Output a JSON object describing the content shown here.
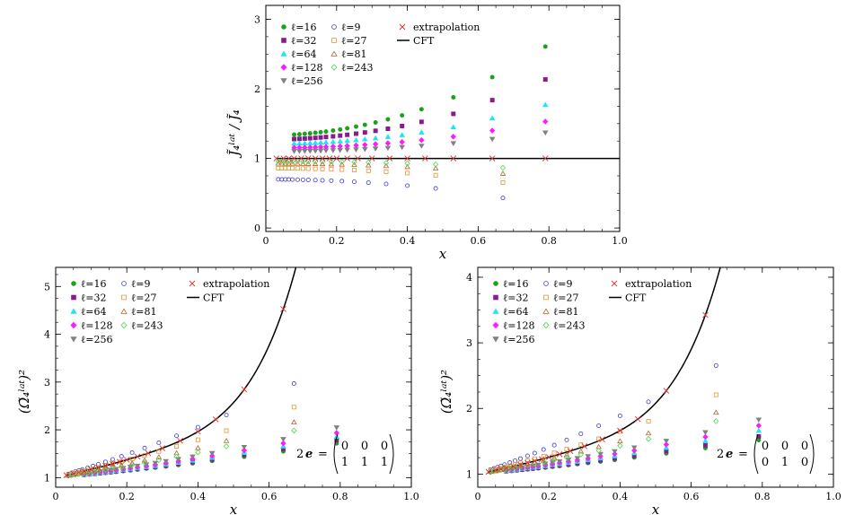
{
  "colors": {
    "l16": "#1aa31a",
    "l32": "#8b1a8b",
    "l64": "#1ee6f0",
    "l128": "#ff1aff",
    "l256": "#808080",
    "l9": "#3b3bd9",
    "l27": "#f0922e",
    "l81": "#b5652e",
    "l243": "#4fd64f",
    "extrapolation": "#e03030",
    "cft": "#000000"
  },
  "chart_data": [
    {
      "id": "top",
      "type": "scatter",
      "ylabel": "J̃₄ˡᵃᵗ / J̃₄",
      "xlabel": "x",
      "xlim": [
        0,
        1.0
      ],
      "ylim": [
        -0.05,
        3.2
      ],
      "xticks": [
        "0",
        "0.2",
        "0.4",
        "0.6",
        "0.8",
        "1.0"
      ],
      "xtick_values": [
        0,
        0.2,
        0.4,
        0.6,
        0.8,
        1.0
      ],
      "yticks": [
        "0",
        "1",
        "2",
        "3"
      ],
      "ytick_values": [
        0,
        1,
        2,
        3
      ],
      "legend": [
        "ℓ=16",
        "ℓ=32",
        "ℓ=64",
        "ℓ=128",
        "ℓ=256",
        "ℓ=9",
        "ℓ=27",
        "ℓ=81",
        "ℓ=243",
        "extrapolation",
        "CFT"
      ],
      "cft": "flat",
      "fits": {
        "l16": {
          "a": 1.33,
          "b": 1.95
        },
        "l32": {
          "a": 1.27,
          "b": 1.32
        },
        "l64": {
          "a": 1.21,
          "b": 0.86
        },
        "l128": {
          "a": 1.15,
          "b": 0.58
        },
        "l256": {
          "a": 1.1,
          "b": 0.41
        },
        "l9": {
          "a": 0.7,
          "b": -0.57
        },
        "l27": {
          "a": 0.86,
          "b": -0.44
        },
        "l81": {
          "a": 0.93,
          "b": -0.31
        },
        "l243": {
          "a": 0.96,
          "b": -0.2
        }
      },
      "matrix": null
    },
    {
      "id": "bottom-left",
      "type": "scatter",
      "ylabel": "(Ω̃₄ˡᵃᵗ)²",
      "xlabel": "x",
      "xlim": [
        0,
        1.0
      ],
      "ylim": [
        0.8,
        5.4
      ],
      "xticks": [
        "0",
        "0.2",
        "0.4",
        "0.6",
        "0.8",
        "1.0"
      ],
      "xtick_values": [
        0,
        0.2,
        0.4,
        0.6,
        0.8,
        1.0
      ],
      "yticks": [
        "1",
        "2",
        "3",
        "4",
        "5"
      ],
      "ytick_values": [
        1,
        2,
        3,
        4,
        5
      ],
      "legend": [
        "ℓ=16",
        "ℓ=32",
        "ℓ=64",
        "ℓ=128",
        "ℓ=256",
        "ℓ=9",
        "ℓ=27",
        "ℓ=81",
        "ℓ=243",
        "extrapolation",
        "CFT"
      ],
      "cft": "growing",
      "cft_k": 1.6,
      "fits": {
        "l16": {
          "k": 0.65
        },
        "l32": {
          "k": 0.71
        },
        "l64": {
          "k": 0.78
        },
        "l128": {
          "k": 0.85
        },
        "l256": {
          "k": 0.95
        },
        "l9": {
          "k": 2.2
        },
        "l27": {
          "k": 1.65
        },
        "l81": {
          "k": 1.3
        },
        "l243": {
          "k": 1.1
        }
      },
      "matrix": {
        "prefix": "2",
        "symbol": "e",
        "rows": [
          [
            "0",
            "0",
            "0"
          ],
          [
            "1",
            "1",
            "1"
          ]
        ]
      }
    },
    {
      "id": "bottom-right",
      "type": "scatter",
      "ylabel": "(Ω̃₄ˡᵃᵗ)²",
      "xlabel": "x",
      "xlim": [
        0,
        1.0
      ],
      "ylim": [
        0.8,
        4.15
      ],
      "xticks": [
        "0",
        "0.2",
        "0.4",
        "0.6",
        "0.8",
        "1.0"
      ],
      "xtick_values": [
        0,
        0.2,
        0.4,
        0.6,
        0.8,
        1.0
      ],
      "yticks": [
        "1",
        "2",
        "3",
        "4"
      ],
      "ytick_values": [
        1,
        2,
        3,
        4
      ],
      "legend": [
        "ℓ=16",
        "ℓ=32",
        "ℓ=64",
        "ℓ=128",
        "ℓ=256",
        "ℓ=9",
        "ℓ=27",
        "ℓ=81",
        "ℓ=243",
        "extrapolation",
        "CFT"
      ],
      "cft": "growing",
      "cft_k": 1.1,
      "fits": {
        "l16": {
          "k": 0.47
        },
        "l32": {
          "k": 0.52
        },
        "l64": {
          "k": 0.6
        },
        "l128": {
          "k": 0.67
        },
        "l256": {
          "k": 0.75
        },
        "l9": {
          "k": 1.85
        },
        "l27": {
          "k": 1.35
        },
        "l81": {
          "k": 1.05
        },
        "l243": {
          "k": 0.9
        }
      },
      "matrix": {
        "prefix": "2",
        "symbol": "e",
        "rows": [
          [
            "0",
            "0",
            "0"
          ],
          [
            "0",
            "1",
            "0"
          ]
        ]
      }
    }
  ],
  "series_order": [
    "l16",
    "l32",
    "l64",
    "l128",
    "l256",
    "l9",
    "l27",
    "l81",
    "l243"
  ],
  "extrapolation_x": [
    0.03,
    0.05,
    0.065,
    0.08,
    0.1,
    0.12,
    0.14,
    0.16,
    0.18,
    0.2,
    0.23,
    0.26,
    0.3,
    0.35,
    0.4,
    0.45,
    0.53,
    0.64,
    0.79
  ],
  "family_a_x": [
    0.08,
    0.095,
    0.11,
    0.125,
    0.14,
    0.155,
    0.17,
    0.19,
    0.21,
    0.23,
    0.255,
    0.28,
    0.31,
    0.345,
    0.385,
    0.44,
    0.53,
    0.64,
    0.79
  ],
  "family_b_x": [
    0.035,
    0.045,
    0.055,
    0.065,
    0.075,
    0.09,
    0.105,
    0.12,
    0.14,
    0.16,
    0.185,
    0.215,
    0.25,
    0.29,
    0.34,
    0.4,
    0.48,
    0.67
  ]
}
